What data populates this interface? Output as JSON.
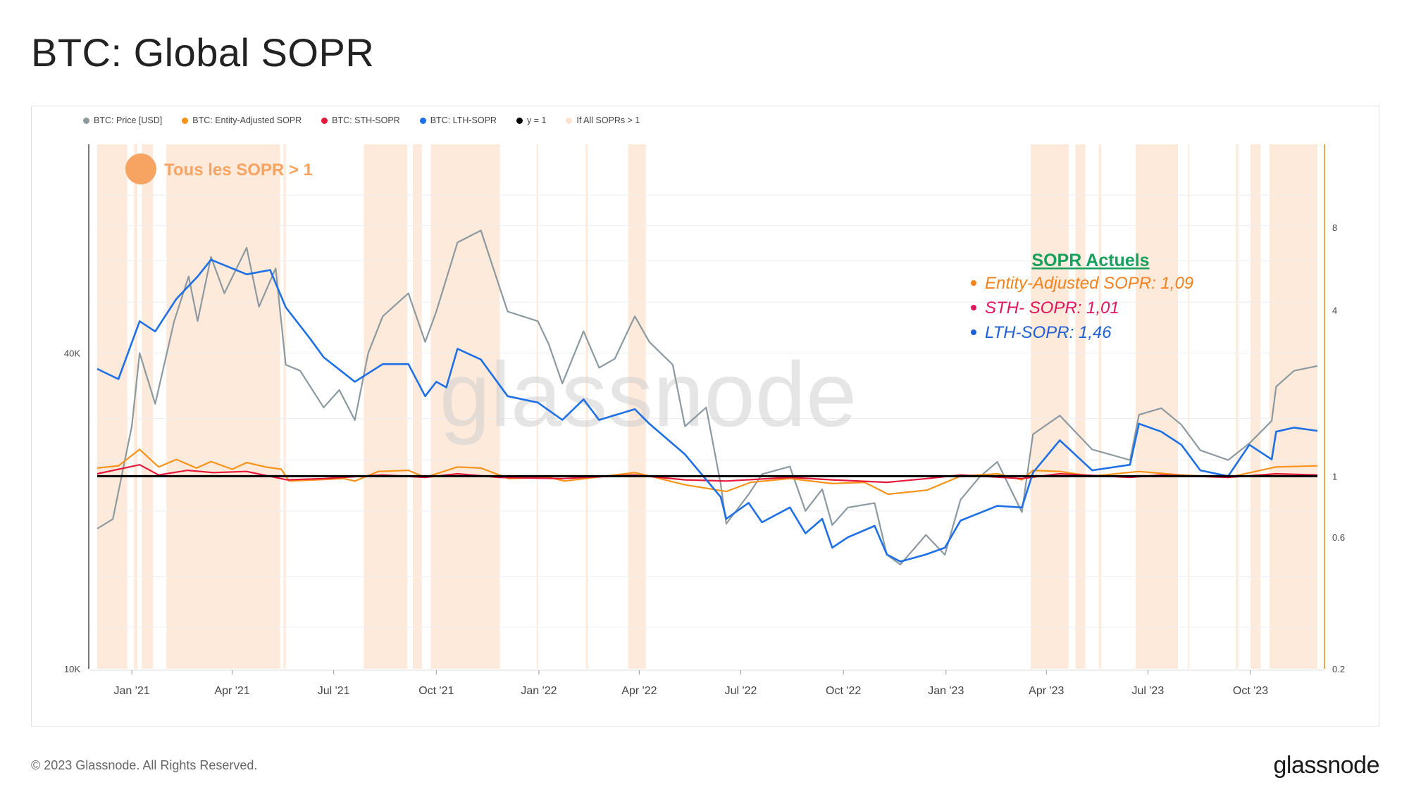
{
  "page": {
    "title": "BTC: Global SOPR",
    "copyright": "© 2023 Glassnode. All Rights Reserved.",
    "brand": "glassnode",
    "watermark": "glassnode"
  },
  "legend": [
    {
      "label": "BTC: Price [USD]",
      "color": "#8c9aa0"
    },
    {
      "label": "BTC: Entity-Adjusted SOPR",
      "color": "#f7931a"
    },
    {
      "label": "BTC: STH-SOPR",
      "color": "#e6193c"
    },
    {
      "label": "BTC: LTH-SOPR",
      "color": "#1f6fe5"
    },
    {
      "label": "y = 1",
      "color": "#000000"
    },
    {
      "label": "If All SOPRs > 1",
      "color": "#fde3cf"
    }
  ],
  "annotations": {
    "regime_label": "Tous les SOPR > 1",
    "regime_color": "#f7a462",
    "current_title": "SOPR Actuels",
    "current_title_color": "#17a05d",
    "current": [
      {
        "label": "Entity-Adjusted SOPR: 1,09",
        "color": "#f5821f"
      },
      {
        "label": "STH- SOPR: 1,01",
        "color": "#e0165e"
      },
      {
        "label": "LTH-SOPR: 1,46",
        "color": "#1f5fd6"
      }
    ]
  },
  "chart_data": {
    "type": "line",
    "title": "BTC: Global SOPR",
    "x_range": [
      "2020-12-01",
      "2023-11-30"
    ],
    "x_ticks": [
      "Jan '21",
      "Apr '21",
      "Jul '21",
      "Oct '21",
      "Jan '22",
      "Apr '22",
      "Jul '22",
      "Oct '22",
      "Jan '23",
      "Apr '23",
      "Jul '23",
      "Oct '23"
    ],
    "y_left": {
      "label": "BTC: Price [USD]",
      "scale": "log",
      "ticks": [
        "10K",
        "40K"
      ],
      "range": [
        10000,
        100000
      ]
    },
    "y_right": {
      "label": "SOPR",
      "scale": "log",
      "ticks": [
        "0.2",
        "0.6",
        "1",
        "4",
        "8"
      ],
      "range": [
        0.2,
        16
      ]
    },
    "series": [
      {
        "name": "BTC: Price [USD]",
        "color": "#8c9aa0",
        "axis": "left",
        "points": [
          [
            "2020-12-01",
            18500
          ],
          [
            "2020-12-15",
            19300
          ],
          [
            "2021-01-01",
            29000
          ],
          [
            "2021-01-08",
            40000
          ],
          [
            "2021-01-22",
            32000
          ],
          [
            "2021-02-08",
            46000
          ],
          [
            "2021-02-21",
            56000
          ],
          [
            "2021-03-01",
            46000
          ],
          [
            "2021-03-13",
            61000
          ],
          [
            "2021-03-25",
            52000
          ],
          [
            "2021-04-14",
            63500
          ],
          [
            "2021-04-25",
            49000
          ],
          [
            "2021-05-10",
            58000
          ],
          [
            "2021-05-19",
            38000
          ],
          [
            "2021-06-01",
            37000
          ],
          [
            "2021-06-22",
            31500
          ],
          [
            "2021-07-06",
            34000
          ],
          [
            "2021-07-20",
            29800
          ],
          [
            "2021-08-01",
            40000
          ],
          [
            "2021-08-14",
            47000
          ],
          [
            "2021-09-06",
            52000
          ],
          [
            "2021-09-21",
            42000
          ],
          [
            "2021-10-01",
            48000
          ],
          [
            "2021-10-20",
            65000
          ],
          [
            "2021-11-10",
            68500
          ],
          [
            "2021-11-26",
            54000
          ],
          [
            "2021-12-04",
            48000
          ],
          [
            "2021-12-31",
            46000
          ],
          [
            "2022-01-10",
            41500
          ],
          [
            "2022-01-22",
            35000
          ],
          [
            "2022-02-10",
            44000
          ],
          [
            "2022-02-24",
            37500
          ],
          [
            "2022-03-10",
            39000
          ],
          [
            "2022-03-28",
            47000
          ],
          [
            "2022-04-10",
            42000
          ],
          [
            "2022-05-01",
            38000
          ],
          [
            "2022-05-12",
            29000
          ],
          [
            "2022-05-31",
            31500
          ],
          [
            "2022-06-13",
            22500
          ],
          [
            "2022-06-18",
            18900
          ],
          [
            "2022-07-08",
            21500
          ],
          [
            "2022-07-20",
            23500
          ],
          [
            "2022-08-14",
            24300
          ],
          [
            "2022-08-28",
            20000
          ],
          [
            "2022-09-12",
            22000
          ],
          [
            "2022-09-21",
            18800
          ],
          [
            "2022-10-05",
            20300
          ],
          [
            "2022-10-29",
            20700
          ],
          [
            "2022-11-09",
            16500
          ],
          [
            "2022-11-21",
            15800
          ],
          [
            "2022-12-14",
            18000
          ],
          [
            "2022-12-31",
            16500
          ],
          [
            "2023-01-14",
            21000
          ],
          [
            "2023-01-31",
            23200
          ],
          [
            "2023-02-16",
            24800
          ],
          [
            "2023-03-10",
            19900
          ],
          [
            "2023-03-20",
            28000
          ],
          [
            "2023-04-13",
            30400
          ],
          [
            "2023-05-12",
            26200
          ],
          [
            "2023-06-15",
            25000
          ],
          [
            "2023-06-23",
            30500
          ],
          [
            "2023-07-13",
            31400
          ],
          [
            "2023-07-31",
            29200
          ],
          [
            "2023-08-17",
            26100
          ],
          [
            "2023-09-11",
            25000
          ],
          [
            "2023-09-30",
            26900
          ],
          [
            "2023-10-20",
            29700
          ],
          [
            "2023-10-24",
            34500
          ],
          [
            "2023-11-09",
            37000
          ],
          [
            "2023-11-30",
            37800
          ]
        ]
      },
      {
        "name": "BTC: Entity-Adjusted SOPR",
        "color": "#f7931a",
        "axis": "right",
        "points": [
          [
            "2020-12-01",
            1.07
          ],
          [
            "2020-12-20",
            1.09
          ],
          [
            "2021-01-08",
            1.25
          ],
          [
            "2021-01-25",
            1.08
          ],
          [
            "2021-02-10",
            1.15
          ],
          [
            "2021-02-28",
            1.07
          ],
          [
            "2021-03-13",
            1.13
          ],
          [
            "2021-04-01",
            1.06
          ],
          [
            "2021-04-14",
            1.12
          ],
          [
            "2021-05-01",
            1.08
          ],
          [
            "2021-05-15",
            1.06
          ],
          [
            "2021-05-22",
            0.96
          ],
          [
            "2021-06-15",
            0.97
          ],
          [
            "2021-07-10",
            0.98
          ],
          [
            "2021-07-20",
            0.96
          ],
          [
            "2021-08-10",
            1.04
          ],
          [
            "2021-09-06",
            1.05
          ],
          [
            "2021-09-21",
            0.99
          ],
          [
            "2021-10-20",
            1.08
          ],
          [
            "2021-11-10",
            1.07
          ],
          [
            "2021-12-05",
            0.98
          ],
          [
            "2022-01-10",
            0.99
          ],
          [
            "2022-01-24",
            0.96
          ],
          [
            "2022-03-28",
            1.03
          ],
          [
            "2022-04-15",
            0.99
          ],
          [
            "2022-05-12",
            0.93
          ],
          [
            "2022-06-18",
            0.88
          ],
          [
            "2022-07-10",
            0.95
          ],
          [
            "2022-08-14",
            0.98
          ],
          [
            "2022-09-21",
            0.94
          ],
          [
            "2022-10-20",
            0.95
          ],
          [
            "2022-11-10",
            0.86
          ],
          [
            "2022-12-15",
            0.89
          ],
          [
            "2023-01-14",
            1.0
          ],
          [
            "2023-02-16",
            1.02
          ],
          [
            "2023-03-10",
            0.97
          ],
          [
            "2023-03-20",
            1.05
          ],
          [
            "2023-04-13",
            1.04
          ],
          [
            "2023-05-12",
            1.0
          ],
          [
            "2023-06-23",
            1.04
          ],
          [
            "2023-07-31",
            1.01
          ],
          [
            "2023-09-11",
            0.99
          ],
          [
            "2023-10-24",
            1.08
          ],
          [
            "2023-11-30",
            1.09
          ]
        ]
      },
      {
        "name": "BTC: STH-SOPR",
        "color": "#e6193c",
        "axis": "right",
        "points": [
          [
            "2020-12-01",
            1.02
          ],
          [
            "2021-01-08",
            1.1
          ],
          [
            "2021-01-25",
            1.01
          ],
          [
            "2021-02-20",
            1.05
          ],
          [
            "2021-03-15",
            1.03
          ],
          [
            "2021-04-14",
            1.04
          ],
          [
            "2021-05-20",
            0.97
          ],
          [
            "2021-06-22",
            0.98
          ],
          [
            "2021-08-14",
            1.01
          ],
          [
            "2021-09-21",
            0.99
          ],
          [
            "2021-10-20",
            1.02
          ],
          [
            "2021-11-26",
            0.99
          ],
          [
            "2022-01-22",
            0.98
          ],
          [
            "2022-03-28",
            1.01
          ],
          [
            "2022-05-12",
            0.97
          ],
          [
            "2022-06-18",
            0.96
          ],
          [
            "2022-08-14",
            0.99
          ],
          [
            "2022-09-21",
            0.97
          ],
          [
            "2022-11-09",
            0.95
          ],
          [
            "2022-12-15",
            0.98
          ],
          [
            "2023-01-14",
            1.01
          ],
          [
            "2023-03-10",
            0.98
          ],
          [
            "2023-04-13",
            1.02
          ],
          [
            "2023-06-15",
            0.99
          ],
          [
            "2023-07-13",
            1.01
          ],
          [
            "2023-09-11",
            0.99
          ],
          [
            "2023-10-24",
            1.02
          ],
          [
            "2023-11-30",
            1.01
          ]
        ]
      },
      {
        "name": "BTC: LTH-SOPR",
        "color": "#1f6fe5",
        "axis": "right",
        "points": [
          [
            "2020-12-01",
            2.45
          ],
          [
            "2020-12-20",
            2.25
          ],
          [
            "2021-01-08",
            3.65
          ],
          [
            "2021-01-22",
            3.35
          ],
          [
            "2021-02-10",
            4.4
          ],
          [
            "2021-03-01",
            5.3
          ],
          [
            "2021-03-13",
            6.1
          ],
          [
            "2021-04-14",
            5.4
          ],
          [
            "2021-05-05",
            5.6
          ],
          [
            "2021-05-19",
            4.1
          ],
          [
            "2021-06-10",
            3.15
          ],
          [
            "2021-06-22",
            2.7
          ],
          [
            "2021-07-20",
            2.2
          ],
          [
            "2021-08-14",
            2.55
          ],
          [
            "2021-09-06",
            2.55
          ],
          [
            "2021-09-21",
            1.95
          ],
          [
            "2021-10-01",
            2.2
          ],
          [
            "2021-10-10",
            2.1
          ],
          [
            "2021-10-20",
            2.9
          ],
          [
            "2021-11-10",
            2.65
          ],
          [
            "2021-12-04",
            1.95
          ],
          [
            "2021-12-31",
            1.85
          ],
          [
            "2022-01-22",
            1.6
          ],
          [
            "2022-02-10",
            1.9
          ],
          [
            "2022-02-24",
            1.6
          ],
          [
            "2022-03-28",
            1.75
          ],
          [
            "2022-04-10",
            1.55
          ],
          [
            "2022-05-12",
            1.2
          ],
          [
            "2022-06-13",
            0.84
          ],
          [
            "2022-06-18",
            0.7
          ],
          [
            "2022-07-08",
            0.8
          ],
          [
            "2022-07-20",
            0.68
          ],
          [
            "2022-08-14",
            0.77
          ],
          [
            "2022-08-28",
            0.62
          ],
          [
            "2022-09-12",
            0.7
          ],
          [
            "2022-09-21",
            0.55
          ],
          [
            "2022-10-05",
            0.6
          ],
          [
            "2022-10-29",
            0.66
          ],
          [
            "2022-11-09",
            0.52
          ],
          [
            "2022-11-21",
            0.49
          ],
          [
            "2022-12-14",
            0.52
          ],
          [
            "2022-12-31",
            0.55
          ],
          [
            "2023-01-14",
            0.69
          ],
          [
            "2023-02-16",
            0.78
          ],
          [
            "2023-03-10",
            0.77
          ],
          [
            "2023-03-20",
            1.03
          ],
          [
            "2023-04-13",
            1.35
          ],
          [
            "2023-05-12",
            1.05
          ],
          [
            "2023-06-15",
            1.1
          ],
          [
            "2023-06-23",
            1.55
          ],
          [
            "2023-07-13",
            1.45
          ],
          [
            "2023-07-31",
            1.3
          ],
          [
            "2023-08-17",
            1.05
          ],
          [
            "2023-09-11",
            1.0
          ],
          [
            "2023-09-30",
            1.3
          ],
          [
            "2023-10-20",
            1.15
          ],
          [
            "2023-10-24",
            1.45
          ],
          [
            "2023-11-09",
            1.5
          ],
          [
            "2023-11-30",
            1.46
          ]
        ]
      },
      {
        "name": "y = 1",
        "color": "#000000",
        "axis": "right",
        "points": [
          [
            "2020-12-01",
            1
          ],
          [
            "2023-11-30",
            1
          ]
        ]
      }
    ],
    "shaded_periods": {
      "name": "If All SOPRs > 1",
      "color": "#fde3cf",
      "ranges": [
        [
          "2020-12-01",
          "2020-12-28"
        ],
        [
          "2021-01-03",
          "2021-01-06"
        ],
        [
          "2021-01-10",
          "2021-01-20"
        ],
        [
          "2021-02-01",
          "2021-05-14"
        ],
        [
          "2021-05-17",
          "2021-05-19"
        ],
        [
          "2021-07-28",
          "2021-09-05"
        ],
        [
          "2021-09-10",
          "2021-09-18"
        ],
        [
          "2021-09-26",
          "2021-11-27"
        ],
        [
          "2021-12-30",
          "2021-12-31"
        ],
        [
          "2022-02-12",
          "2022-02-14"
        ],
        [
          "2022-03-22",
          "2022-04-07"
        ],
        [
          "2023-03-18",
          "2023-04-21"
        ],
        [
          "2023-04-27",
          "2023-05-06"
        ],
        [
          "2023-05-18",
          "2023-05-20"
        ],
        [
          "2023-06-20",
          "2023-07-28"
        ],
        [
          "2023-08-06",
          "2023-08-07"
        ],
        [
          "2023-09-18",
          "2023-09-20"
        ],
        [
          "2023-10-01",
          "2023-10-10"
        ],
        [
          "2023-10-18",
          "2023-11-30"
        ]
      ]
    }
  }
}
